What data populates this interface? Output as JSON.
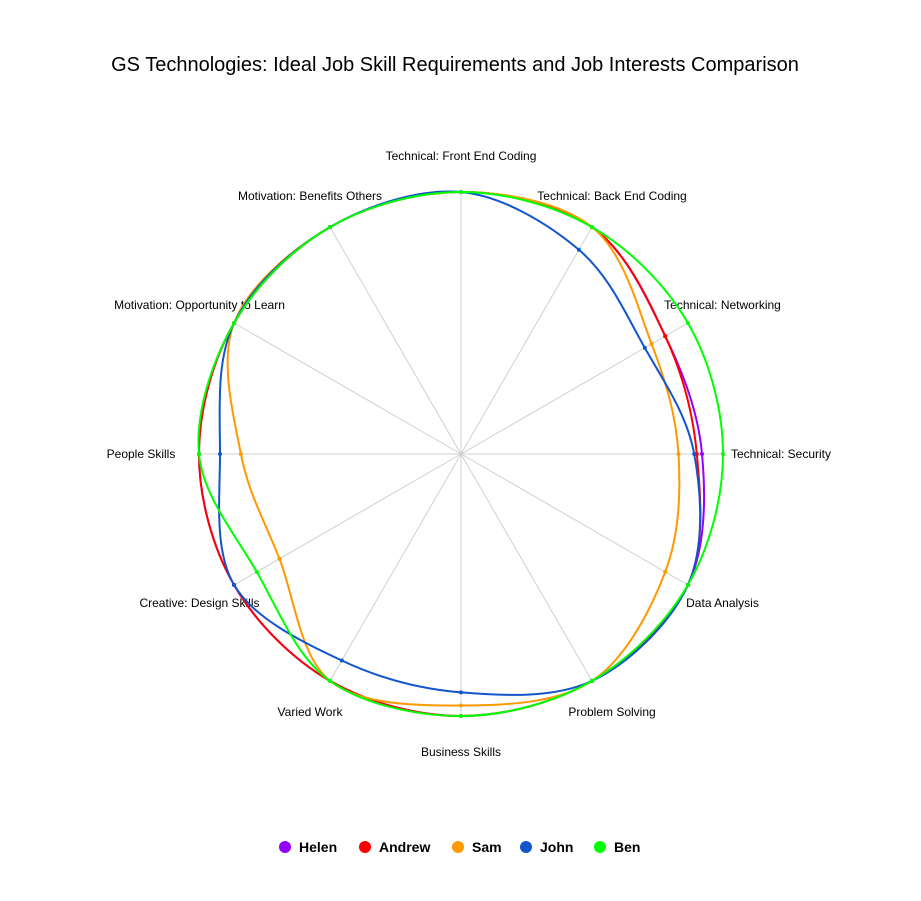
{
  "chart_data": {
    "type": "radar",
    "title": "GS Technologies: Ideal Job Skill Requirements and Job Interests Comparison",
    "axes": [
      "Technical: Front End Coding",
      "Technical: Back End Coding",
      "Technical: Networking",
      "Technical: Security",
      "Data Analysis",
      "Problem Solving",
      "Business Skills",
      "Varied Work",
      "Creative: Design Skills",
      "People Skills",
      "Motivation: Opportunity to Learn",
      "Motivation: Benefits Others"
    ],
    "rlim": [
      0,
      100
    ],
    "grid": true,
    "legend_position": "bottom",
    "series": [
      {
        "name": "Helen",
        "color": "#9400ff",
        "values": [
          100,
          100,
          90,
          92,
          100,
          100,
          100,
          100,
          100,
          100,
          100,
          100
        ]
      },
      {
        "name": "Andrew",
        "color": "#ff0000",
        "values": [
          100,
          100,
          90,
          90,
          100,
          100,
          100,
          100,
          100,
          100,
          100,
          100
        ]
      },
      {
        "name": "Sam",
        "color": "#ff9900",
        "values": [
          100,
          100,
          84,
          83,
          90,
          100,
          96,
          100,
          80,
          84,
          100,
          100
        ]
      },
      {
        "name": "John",
        "color": "#1155cc",
        "values": [
          100,
          90,
          81,
          89,
          100,
          100,
          91,
          91,
          100,
          92,
          100,
          100
        ]
      },
      {
        "name": "Ben",
        "color": "#00ff00",
        "values": [
          100,
          100,
          100,
          100,
          100,
          100,
          100,
          100,
          90,
          100,
          100,
          100
        ]
      }
    ]
  }
}
